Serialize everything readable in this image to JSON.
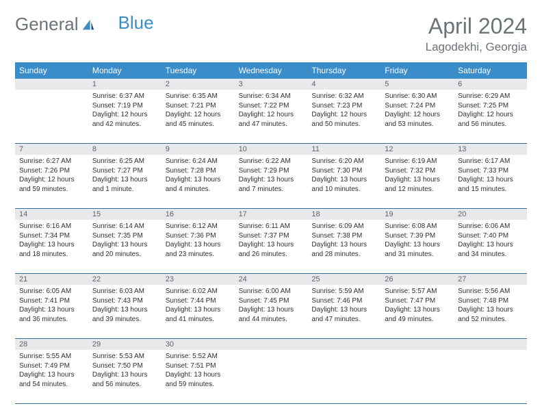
{
  "logo": {
    "text1": "General",
    "text2": "Blue"
  },
  "month_title": "April 2024",
  "location": "Lagodekhi, Georgia",
  "header_bg": "#3b8dc9",
  "header_text": "#ffffff",
  "daynum_bg": "#e7e9ea",
  "row_border": "#3b6d93",
  "text_color": "#2f2f2f",
  "muted_color": "#6b7376",
  "day_names": [
    "Sunday",
    "Monday",
    "Tuesday",
    "Wednesday",
    "Thursday",
    "Friday",
    "Saturday"
  ],
  "weeks": [
    {
      "nums": [
        "",
        "1",
        "2",
        "3",
        "4",
        "5",
        "6"
      ],
      "cells": [
        null,
        {
          "sunrise": "Sunrise: 6:37 AM",
          "sunset": "Sunset: 7:19 PM",
          "dl1": "Daylight: 12 hours",
          "dl2": "and 42 minutes."
        },
        {
          "sunrise": "Sunrise: 6:35 AM",
          "sunset": "Sunset: 7:21 PM",
          "dl1": "Daylight: 12 hours",
          "dl2": "and 45 minutes."
        },
        {
          "sunrise": "Sunrise: 6:34 AM",
          "sunset": "Sunset: 7:22 PM",
          "dl1": "Daylight: 12 hours",
          "dl2": "and 47 minutes."
        },
        {
          "sunrise": "Sunrise: 6:32 AM",
          "sunset": "Sunset: 7:23 PM",
          "dl1": "Daylight: 12 hours",
          "dl2": "and 50 minutes."
        },
        {
          "sunrise": "Sunrise: 6:30 AM",
          "sunset": "Sunset: 7:24 PM",
          "dl1": "Daylight: 12 hours",
          "dl2": "and 53 minutes."
        },
        {
          "sunrise": "Sunrise: 6:29 AM",
          "sunset": "Sunset: 7:25 PM",
          "dl1": "Daylight: 12 hours",
          "dl2": "and 56 minutes."
        }
      ]
    },
    {
      "nums": [
        "7",
        "8",
        "9",
        "10",
        "11",
        "12",
        "13"
      ],
      "cells": [
        {
          "sunrise": "Sunrise: 6:27 AM",
          "sunset": "Sunset: 7:26 PM",
          "dl1": "Daylight: 12 hours",
          "dl2": "and 59 minutes."
        },
        {
          "sunrise": "Sunrise: 6:25 AM",
          "sunset": "Sunset: 7:27 PM",
          "dl1": "Daylight: 13 hours",
          "dl2": "and 1 minute."
        },
        {
          "sunrise": "Sunrise: 6:24 AM",
          "sunset": "Sunset: 7:28 PM",
          "dl1": "Daylight: 13 hours",
          "dl2": "and 4 minutes."
        },
        {
          "sunrise": "Sunrise: 6:22 AM",
          "sunset": "Sunset: 7:29 PM",
          "dl1": "Daylight: 13 hours",
          "dl2": "and 7 minutes."
        },
        {
          "sunrise": "Sunrise: 6:20 AM",
          "sunset": "Sunset: 7:30 PM",
          "dl1": "Daylight: 13 hours",
          "dl2": "and 10 minutes."
        },
        {
          "sunrise": "Sunrise: 6:19 AM",
          "sunset": "Sunset: 7:32 PM",
          "dl1": "Daylight: 13 hours",
          "dl2": "and 12 minutes."
        },
        {
          "sunrise": "Sunrise: 6:17 AM",
          "sunset": "Sunset: 7:33 PM",
          "dl1": "Daylight: 13 hours",
          "dl2": "and 15 minutes."
        }
      ]
    },
    {
      "nums": [
        "14",
        "15",
        "16",
        "17",
        "18",
        "19",
        "20"
      ],
      "cells": [
        {
          "sunrise": "Sunrise: 6:16 AM",
          "sunset": "Sunset: 7:34 PM",
          "dl1": "Daylight: 13 hours",
          "dl2": "and 18 minutes."
        },
        {
          "sunrise": "Sunrise: 6:14 AM",
          "sunset": "Sunset: 7:35 PM",
          "dl1": "Daylight: 13 hours",
          "dl2": "and 20 minutes."
        },
        {
          "sunrise": "Sunrise: 6:12 AM",
          "sunset": "Sunset: 7:36 PM",
          "dl1": "Daylight: 13 hours",
          "dl2": "and 23 minutes."
        },
        {
          "sunrise": "Sunrise: 6:11 AM",
          "sunset": "Sunset: 7:37 PM",
          "dl1": "Daylight: 13 hours",
          "dl2": "and 26 minutes."
        },
        {
          "sunrise": "Sunrise: 6:09 AM",
          "sunset": "Sunset: 7:38 PM",
          "dl1": "Daylight: 13 hours",
          "dl2": "and 28 minutes."
        },
        {
          "sunrise": "Sunrise: 6:08 AM",
          "sunset": "Sunset: 7:39 PM",
          "dl1": "Daylight: 13 hours",
          "dl2": "and 31 minutes."
        },
        {
          "sunrise": "Sunrise: 6:06 AM",
          "sunset": "Sunset: 7:40 PM",
          "dl1": "Daylight: 13 hours",
          "dl2": "and 34 minutes."
        }
      ]
    },
    {
      "nums": [
        "21",
        "22",
        "23",
        "24",
        "25",
        "26",
        "27"
      ],
      "cells": [
        {
          "sunrise": "Sunrise: 6:05 AM",
          "sunset": "Sunset: 7:41 PM",
          "dl1": "Daylight: 13 hours",
          "dl2": "and 36 minutes."
        },
        {
          "sunrise": "Sunrise: 6:03 AM",
          "sunset": "Sunset: 7:43 PM",
          "dl1": "Daylight: 13 hours",
          "dl2": "and 39 minutes."
        },
        {
          "sunrise": "Sunrise: 6:02 AM",
          "sunset": "Sunset: 7:44 PM",
          "dl1": "Daylight: 13 hours",
          "dl2": "and 41 minutes."
        },
        {
          "sunrise": "Sunrise: 6:00 AM",
          "sunset": "Sunset: 7:45 PM",
          "dl1": "Daylight: 13 hours",
          "dl2": "and 44 minutes."
        },
        {
          "sunrise": "Sunrise: 5:59 AM",
          "sunset": "Sunset: 7:46 PM",
          "dl1": "Daylight: 13 hours",
          "dl2": "and 47 minutes."
        },
        {
          "sunrise": "Sunrise: 5:57 AM",
          "sunset": "Sunset: 7:47 PM",
          "dl1": "Daylight: 13 hours",
          "dl2": "and 49 minutes."
        },
        {
          "sunrise": "Sunrise: 5:56 AM",
          "sunset": "Sunset: 7:48 PM",
          "dl1": "Daylight: 13 hours",
          "dl2": "and 52 minutes."
        }
      ]
    },
    {
      "nums": [
        "28",
        "29",
        "30",
        "",
        "",
        "",
        ""
      ],
      "cells": [
        {
          "sunrise": "Sunrise: 5:55 AM",
          "sunset": "Sunset: 7:49 PM",
          "dl1": "Daylight: 13 hours",
          "dl2": "and 54 minutes."
        },
        {
          "sunrise": "Sunrise: 5:53 AM",
          "sunset": "Sunset: 7:50 PM",
          "dl1": "Daylight: 13 hours",
          "dl2": "and 56 minutes."
        },
        {
          "sunrise": "Sunrise: 5:52 AM",
          "sunset": "Sunset: 7:51 PM",
          "dl1": "Daylight: 13 hours",
          "dl2": "and 59 minutes."
        },
        null,
        null,
        null,
        null
      ]
    }
  ]
}
